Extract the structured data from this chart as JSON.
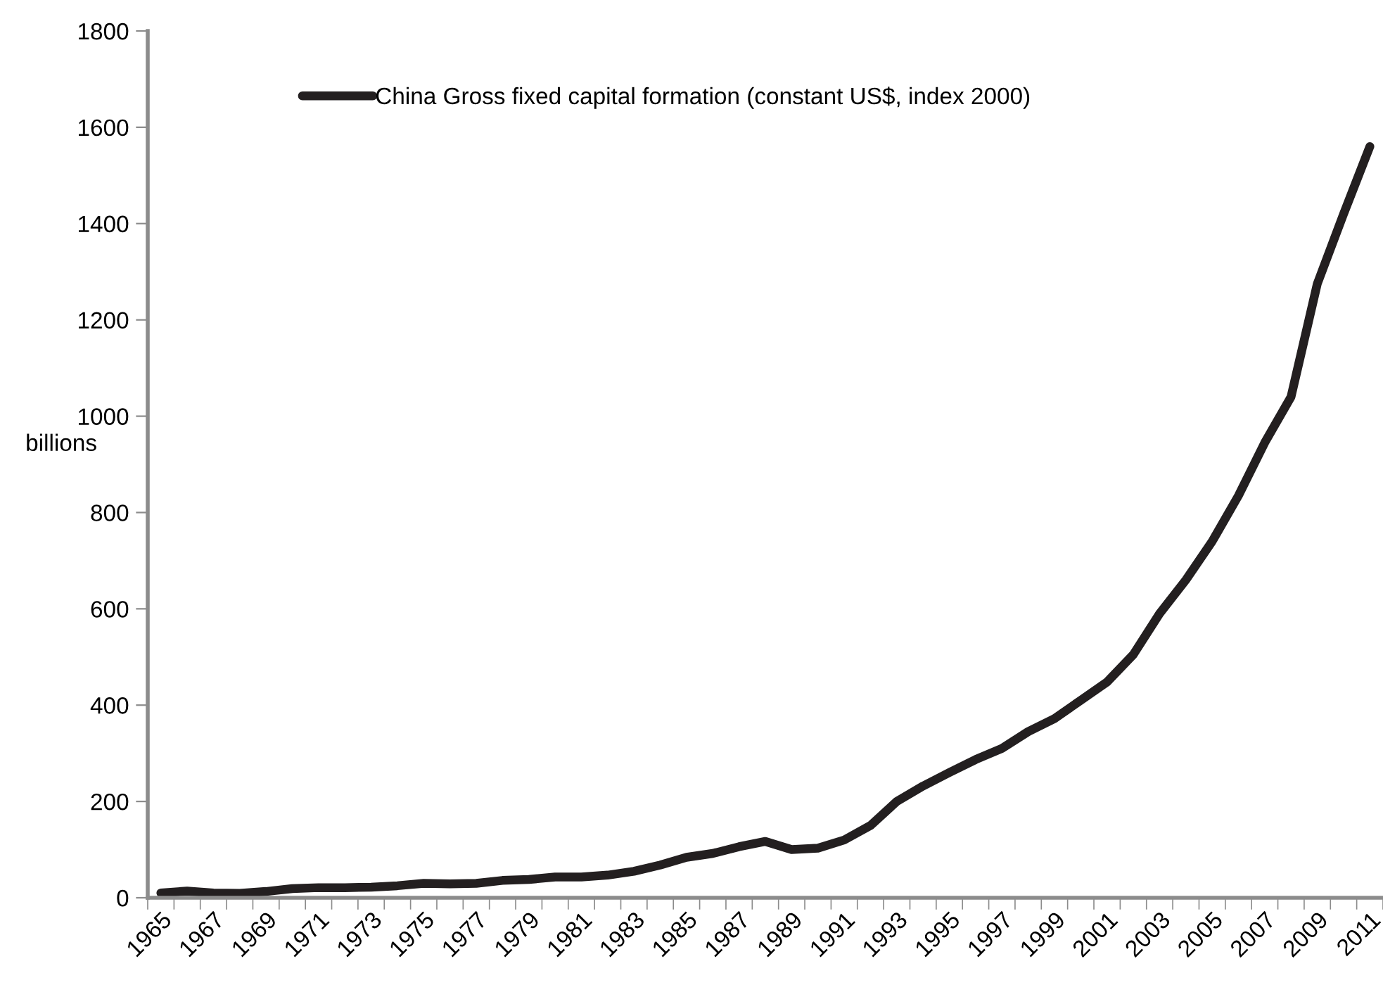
{
  "chart_data": {
    "type": "line",
    "ylabel": "billions",
    "categories": [
      "1965",
      null,
      "1967",
      null,
      "1969",
      null,
      "1971",
      null,
      "1973",
      null,
      "1975",
      null,
      "1977",
      null,
      "1979",
      null,
      "1981",
      null,
      "1983",
      null,
      "1985",
      null,
      "1987",
      null,
      "1989",
      null,
      "1991",
      null,
      "1993",
      null,
      "1995",
      null,
      "1997",
      null,
      "1999",
      null,
      "2001",
      null,
      "2003",
      null,
      "2005",
      null,
      "2007",
      null,
      "2009",
      null,
      "2011"
    ],
    "series": [
      {
        "name": "China Gross fixed capital formation (constant US$, index 2000)",
        "color": "#231f20",
        "values": [
          10,
          14,
          10,
          9,
          13,
          19,
          21,
          21,
          22,
          25,
          30,
          29,
          30,
          36,
          38,
          43,
          43,
          47,
          55,
          68,
          84,
          92,
          106,
          117,
          100,
          103,
          120,
          150,
          200,
          232,
          260,
          287,
          310,
          345,
          372,
          410,
          448,
          505,
          590,
          660,
          740,
          835,
          945,
          1040,
          1275,
          1420,
          1560
        ]
      }
    ],
    "ylim": [
      0,
      1800
    ],
    "yticks": [
      0,
      200,
      400,
      600,
      800,
      1000,
      1200,
      1400,
      1600,
      1800
    ],
    "grid": false,
    "legend": "top",
    "marker": "none",
    "line_style": "solid"
  }
}
